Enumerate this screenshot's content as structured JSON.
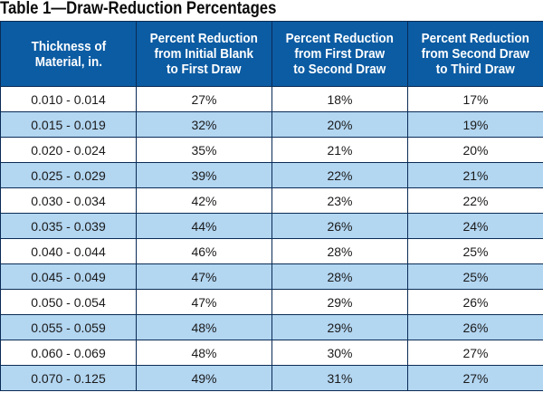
{
  "title": "Table 1—Draw-Reduction Percentages",
  "chart_data": {
    "type": "table",
    "title": "Table 1—Draw-Reduction Percentages",
    "columns": [
      "Thickness of\nMaterial, in.",
      "Percent Reduction\nfrom Initial Blank\nto First Draw",
      "Percent Reduction\nfrom First Draw\nto Second Draw",
      "Percent Reduction\nfrom Second Draw\nto Third Draw"
    ],
    "rows": [
      [
        "0.010 - 0.014",
        "27%",
        "18%",
        "17%"
      ],
      [
        "0.015 - 0.019",
        "32%",
        "20%",
        "19%"
      ],
      [
        "0.020 - 0.024",
        "35%",
        "21%",
        "20%"
      ],
      [
        "0.025 - 0.029",
        "39%",
        "22%",
        "21%"
      ],
      [
        "0.030 - 0.034",
        "42%",
        "23%",
        "22%"
      ],
      [
        "0.035 - 0.039",
        "44%",
        "26%",
        "24%"
      ],
      [
        "0.040 - 0.044",
        "46%",
        "28%",
        "25%"
      ],
      [
        "0.045 - 0.049",
        "47%",
        "28%",
        "25%"
      ],
      [
        "0.050 - 0.054",
        "47%",
        "29%",
        "26%"
      ],
      [
        "0.055 - 0.059",
        "48%",
        "29%",
        "26%"
      ],
      [
        "0.060 - 0.069",
        "48%",
        "30%",
        "27%"
      ],
      [
        "0.070 - 0.125",
        "49%",
        "31%",
        "27%"
      ]
    ]
  },
  "colors": {
    "header_bg": "#0b5ca3",
    "header_text": "#ffffff",
    "row_alt_bg": "#b3d6f1",
    "row_bg": "#ffffff",
    "border": "#0a2b55"
  }
}
